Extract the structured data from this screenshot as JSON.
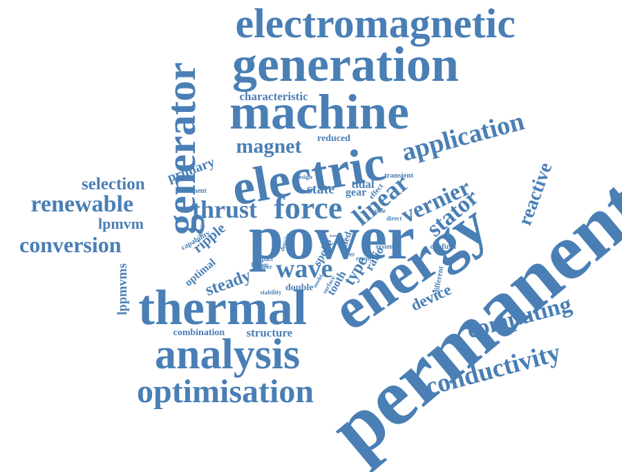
{
  "color": "#4a7fb5",
  "words": [
    {
      "name": "word-electromagnetic",
      "text": "electromagnetic"
    },
    {
      "name": "word-generation",
      "text": "generation"
    },
    {
      "name": "word-generator",
      "text": "generator"
    },
    {
      "name": "word-machine",
      "text": "machine"
    },
    {
      "name": "word-characteristic",
      "text": "characteristic"
    },
    {
      "name": "word-magnet",
      "text": "magnet"
    },
    {
      "name": "word-reduced",
      "text": "reduced"
    },
    {
      "name": "word-application",
      "text": "application"
    },
    {
      "name": "word-electric",
      "text": "electric"
    },
    {
      "name": "word-primary",
      "text": "primary"
    },
    {
      "name": "word-selection",
      "text": "selection"
    },
    {
      "name": "word-renewable",
      "text": "renewable"
    },
    {
      "name": "word-lpmvm",
      "text": "lpmvm"
    },
    {
      "name": "word-conversion",
      "text": "conversion"
    },
    {
      "name": "word-thrust",
      "text": "thrust"
    },
    {
      "name": "word-force",
      "text": "force"
    },
    {
      "name": "word-linear",
      "text": "linear"
    },
    {
      "name": "word-vernier",
      "text": "vernier"
    },
    {
      "name": "word-state",
      "text": "state"
    },
    {
      "name": "word-tidal",
      "text": "tidal"
    },
    {
      "name": "word-gear",
      "text": "gear"
    },
    {
      "name": "word-effect",
      "text": "effect"
    },
    {
      "name": "word-transient",
      "text": "transient"
    },
    {
      "name": "word-design",
      "text": "design"
    },
    {
      "name": "word-element",
      "text": "element"
    },
    {
      "name": "word-stator",
      "text": "stator"
    },
    {
      "name": "word-reactive",
      "text": "reactive"
    },
    {
      "name": "word-permanent",
      "text": "permanent"
    },
    {
      "name": "word-power",
      "text": "power"
    },
    {
      "name": "word-energy",
      "text": "energy"
    },
    {
      "name": "word-magnetic",
      "text": "magnetic"
    },
    {
      "name": "word-capability",
      "text": "capability"
    },
    {
      "name": "word-ripple",
      "text": "ripple"
    },
    {
      "name": "word-density",
      "text": "density"
    },
    {
      "name": "word-spoke",
      "text": "spoke"
    },
    {
      "name": "word-sided",
      "text": "sided"
    },
    {
      "name": "word-pole",
      "text": "pole"
    },
    {
      "name": "word-direct",
      "text": "direct"
    },
    {
      "name": "word-system",
      "text": "system"
    },
    {
      "name": "word-confirm",
      "text": "confirm"
    },
    {
      "name": "word-lppmvms",
      "text": "lppmvms"
    },
    {
      "name": "word-optimal",
      "text": "optimal"
    },
    {
      "name": "word-impact",
      "text": "impact"
    },
    {
      "name": "word-paper",
      "text": "paper"
    },
    {
      "name": "word-higher",
      "text": "higher"
    },
    {
      "name": "word-wave",
      "text": "wave"
    },
    {
      "name": "word-offer",
      "text": "offer"
    },
    {
      "name": "word-result",
      "text": "result"
    },
    {
      "name": "word-term",
      "text": "term"
    },
    {
      "name": "word-steady",
      "text": "steady"
    },
    {
      "name": "word-stability",
      "text": "stability"
    },
    {
      "name": "word-double",
      "text": "double"
    },
    {
      "name": "word-model",
      "text": "model"
    },
    {
      "name": "word-surface",
      "text": "surface"
    },
    {
      "name": "word-tooth",
      "text": "tooth"
    },
    {
      "name": "word-type",
      "text": "type"
    },
    {
      "name": "word-ratio",
      "text": "ratio"
    },
    {
      "name": "word-different",
      "text": "different"
    },
    {
      "name": "word-device",
      "text": "device"
    },
    {
      "name": "word-thermal",
      "text": "thermal"
    },
    {
      "name": "word-combination",
      "text": "combination"
    },
    {
      "name": "word-structure",
      "text": "structure"
    },
    {
      "name": "word-analysis",
      "text": "analysis"
    },
    {
      "name": "word-computing",
      "text": "computing"
    },
    {
      "name": "word-conductivity",
      "text": "conductivity"
    },
    {
      "name": "word-optimisation",
      "text": "optimisation"
    }
  ]
}
